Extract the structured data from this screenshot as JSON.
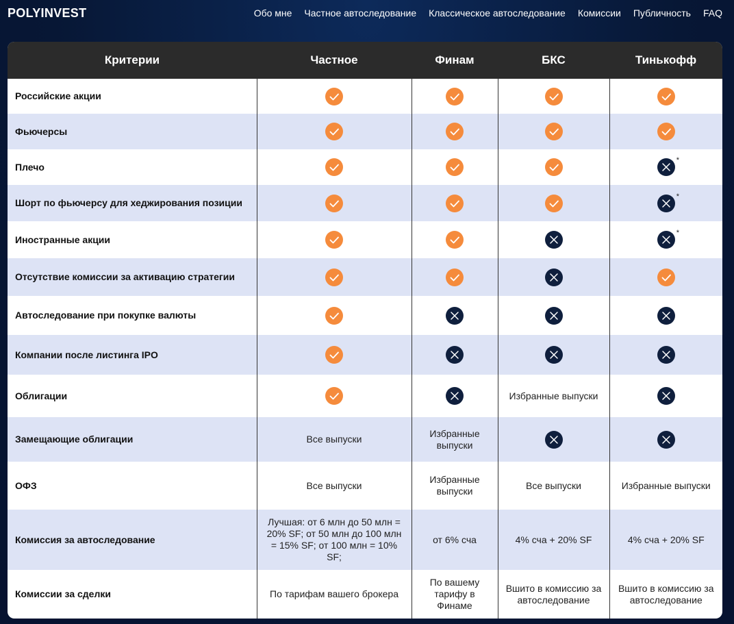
{
  "header": {
    "logo": "POLYINVEST",
    "nav": [
      "Обо мне",
      "Частное автоследование",
      "Классическое автоследование",
      "Комиссии",
      "Публичность",
      "FAQ"
    ]
  },
  "table": {
    "columns": [
      "Критерии",
      "Частное",
      "Финам",
      "БКС",
      "Тинькофф"
    ],
    "rows": [
      {
        "label": "Российские акции",
        "cells": [
          true,
          true,
          true,
          true
        ]
      },
      {
        "label": "Фьючерсы",
        "cells": [
          true,
          true,
          true,
          true
        ]
      },
      {
        "label": "Плечо",
        "cells": [
          true,
          true,
          true,
          {
            "value": false,
            "note": "*"
          }
        ]
      },
      {
        "label": "Шорт по фьючерсу для хеджирования позиции",
        "cells": [
          true,
          true,
          true,
          {
            "value": false,
            "note": "*"
          }
        ]
      },
      {
        "label": "Иностранные акции",
        "cells": [
          true,
          true,
          false,
          {
            "value": false,
            "note": "*"
          }
        ]
      },
      {
        "label": "Отсутствие комиссии за активацию стратегии",
        "cells": [
          true,
          true,
          false,
          true
        ]
      },
      {
        "label": "Автоследование при покупке валюты",
        "cells": [
          true,
          false,
          false,
          false
        ]
      },
      {
        "label": "Компании после листинга IPO",
        "cells": [
          true,
          false,
          false,
          false
        ]
      },
      {
        "label": "Облигации",
        "cells": [
          true,
          false,
          "Избранные выпуски",
          false
        ]
      },
      {
        "label": "Замещающие облигации",
        "cells": [
          "Все выпуски",
          "Избранные выпуски",
          false,
          false
        ]
      },
      {
        "label": "ОФЗ",
        "cells": [
          "Все выпуски",
          "Избранные выпуски",
          "Все выпуски",
          "Избранные выпуски"
        ]
      },
      {
        "label": "Комиссия за автоследование",
        "cells": [
          "Лучшая: от 6 млн до 50 млн = 20% SF; от 50 млн до 100 млн = 15% SF; от 100 млн = 10% SF;",
          "от 6% сча",
          "4% сча + 20% SF",
          "4% сча + 20% SF"
        ]
      },
      {
        "label": "Комиссии за сделки",
        "cells": [
          "По тарифам вашего брокера",
          "По вашему тарифу в Финаме",
          "Вшито в комиссию за автоследование",
          "Вшито в комиссию за автоследование"
        ]
      }
    ]
  }
}
